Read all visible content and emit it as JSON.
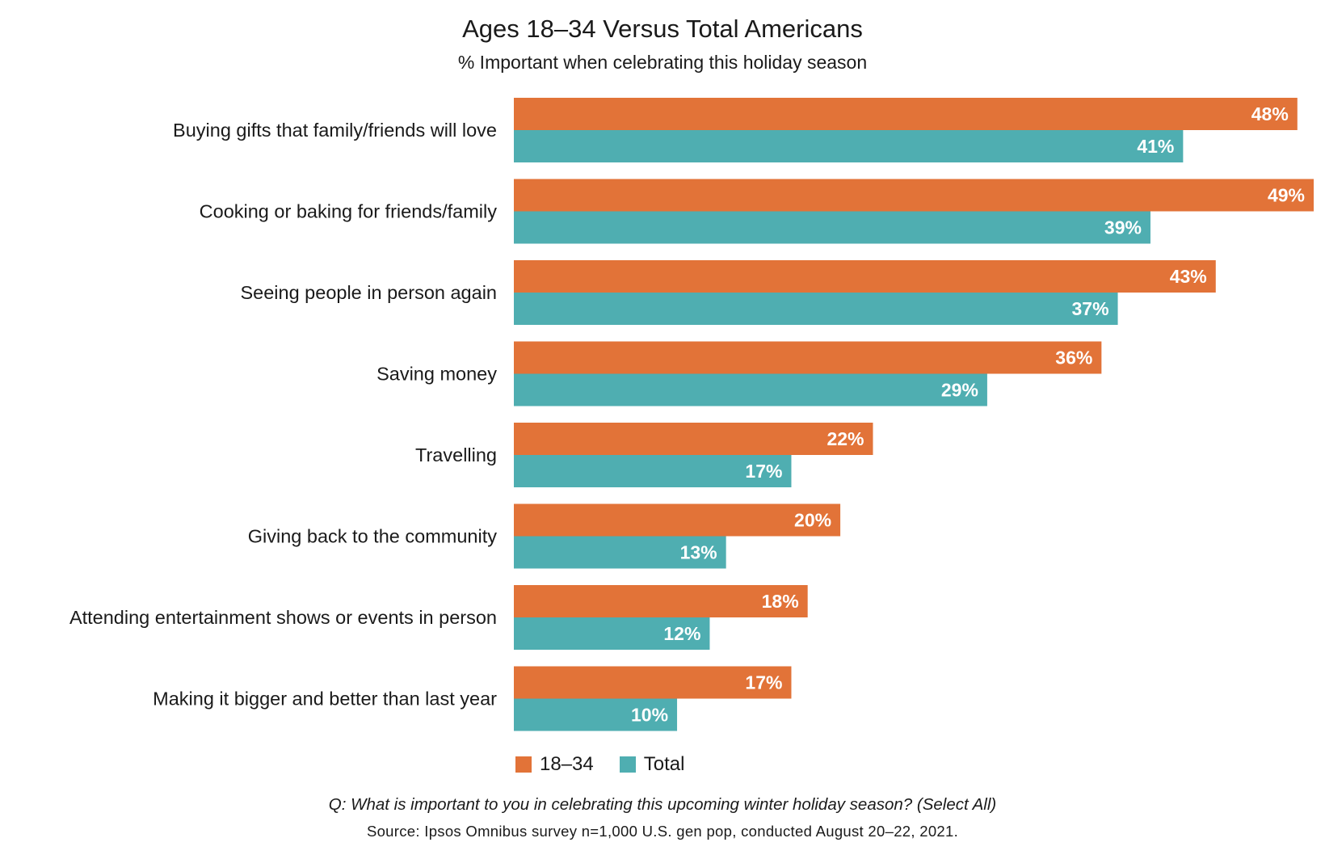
{
  "colors": {
    "series_18_34": "#e27338",
    "series_total": "#4faeb1"
  },
  "chart_data": {
    "type": "bar",
    "orientation": "horizontal",
    "title": "Ages 18–34 Versus Total Americans",
    "subtitle": "% Important when celebrating this holiday season",
    "categories": [
      "Buying gifts that family/friends will love",
      "Cooking or baking for friends/family",
      "Seeing people in person again",
      "Saving money",
      "Travelling",
      "Giving back to the community",
      "Attending entertainment shows or events in person",
      "Making it bigger and better than last year"
    ],
    "series": [
      {
        "name": "18–34",
        "values": [
          48,
          49,
          43,
          36,
          22,
          20,
          18,
          17
        ],
        "labels": [
          "48%",
          "49%",
          "43%",
          "36%",
          "22%",
          "20%",
          "18%",
          "17%"
        ]
      },
      {
        "name": "Total",
        "values": [
          41,
          39,
          37,
          29,
          17,
          13,
          12,
          10
        ],
        "labels": [
          "41%",
          "39%",
          "37%",
          "29%",
          "17%",
          "13%",
          "12%",
          "10%"
        ]
      }
    ],
    "value_unit": "%",
    "xlim": [
      0,
      49
    ],
    "grid": false,
    "legend": "bottom-center"
  },
  "legend": {
    "items": [
      {
        "label": "18–34"
      },
      {
        "label": "Total"
      }
    ]
  },
  "footer": {
    "question": "Q: What is important to you in celebrating this upcoming winter holiday season? (Select All)",
    "source": "Source: Ipsos Omnibus survey n=1,000 U.S. gen pop, conducted August 20–22, 2021."
  }
}
